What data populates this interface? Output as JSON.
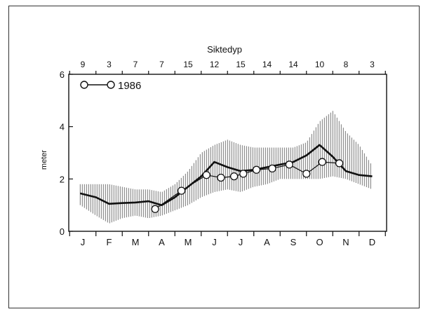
{
  "chart_data": {
    "type": "line",
    "title": "Siktedyp",
    "ylabel": "meter",
    "ylim": [
      0,
      6
    ],
    "yticks": [
      0,
      2,
      4,
      6
    ],
    "x_categories": [
      "J",
      "F",
      "M",
      "A",
      "M",
      "J",
      "J",
      "A",
      "S",
      "O",
      "N",
      "D"
    ],
    "top_counts": [
      {
        "x": 0,
        "label": "9"
      },
      {
        "x": 1,
        "label": "3"
      },
      {
        "x": 2,
        "label": "7"
      },
      {
        "x": 3,
        "label": "7"
      },
      {
        "x": 4,
        "label": "15"
      },
      {
        "x": 5,
        "label": "12"
      },
      {
        "x": 6,
        "label": "15"
      },
      {
        "x": 7,
        "label": "14"
      },
      {
        "x": 8,
        "label": "14"
      },
      {
        "x": 9,
        "label": "10"
      },
      {
        "x": 10,
        "label": "8"
      },
      {
        "x": 11,
        "label": "3"
      }
    ],
    "legend": {
      "label": "1986",
      "position": "top-left"
    },
    "band": {
      "x": [
        -0.1,
        0.5,
        1.0,
        1.5,
        2.0,
        2.5,
        3.0,
        3.5,
        4.0,
        4.5,
        5.0,
        5.5,
        6.0,
        6.5,
        7.0,
        7.5,
        8.0,
        8.5,
        9.0,
        9.5,
        10.0,
        10.5,
        11.0
      ],
      "lower": [
        1.0,
        0.6,
        0.3,
        0.5,
        0.6,
        0.5,
        0.6,
        0.8,
        1.0,
        1.3,
        1.5,
        1.6,
        1.5,
        1.7,
        1.8,
        2.0,
        2.0,
        2.0,
        2.0,
        2.1,
        2.0,
        1.8,
        1.6
      ],
      "upper": [
        1.8,
        1.8,
        1.8,
        1.7,
        1.6,
        1.6,
        1.5,
        1.8,
        2.3,
        3.0,
        3.3,
        3.5,
        3.3,
        3.2,
        3.2,
        3.2,
        3.2,
        3.4,
        4.2,
        4.6,
        3.8,
        3.3,
        2.5
      ]
    },
    "series": [
      {
        "kind": "mean",
        "x": [
          -0.1,
          0.5,
          1.0,
          1.5,
          2.0,
          2.5,
          3.0,
          3.5,
          4.0,
          4.5,
          5.0,
          5.5,
          6.0,
          6.5,
          7.0,
          7.5,
          8.0,
          8.5,
          9.0,
          9.5,
          10.0,
          10.5,
          11.0
        ],
        "y": [
          1.45,
          1.3,
          1.05,
          1.08,
          1.1,
          1.15,
          1.0,
          1.3,
          1.7,
          2.1,
          2.65,
          2.45,
          2.3,
          2.35,
          2.45,
          2.55,
          2.65,
          2.9,
          3.3,
          2.85,
          2.3,
          2.15,
          2.1
        ]
      },
      {
        "name": "1986",
        "kind": "observed",
        "x": [
          2.75,
          3.75,
          4.7,
          5.25,
          5.75,
          6.1,
          6.6,
          7.2,
          7.85,
          8.5,
          9.1,
          9.75
        ],
        "y": [
          0.85,
          1.55,
          2.15,
          2.05,
          2.1,
          2.2,
          2.35,
          2.4,
          2.55,
          2.2,
          2.65,
          2.6
        ]
      }
    ]
  }
}
